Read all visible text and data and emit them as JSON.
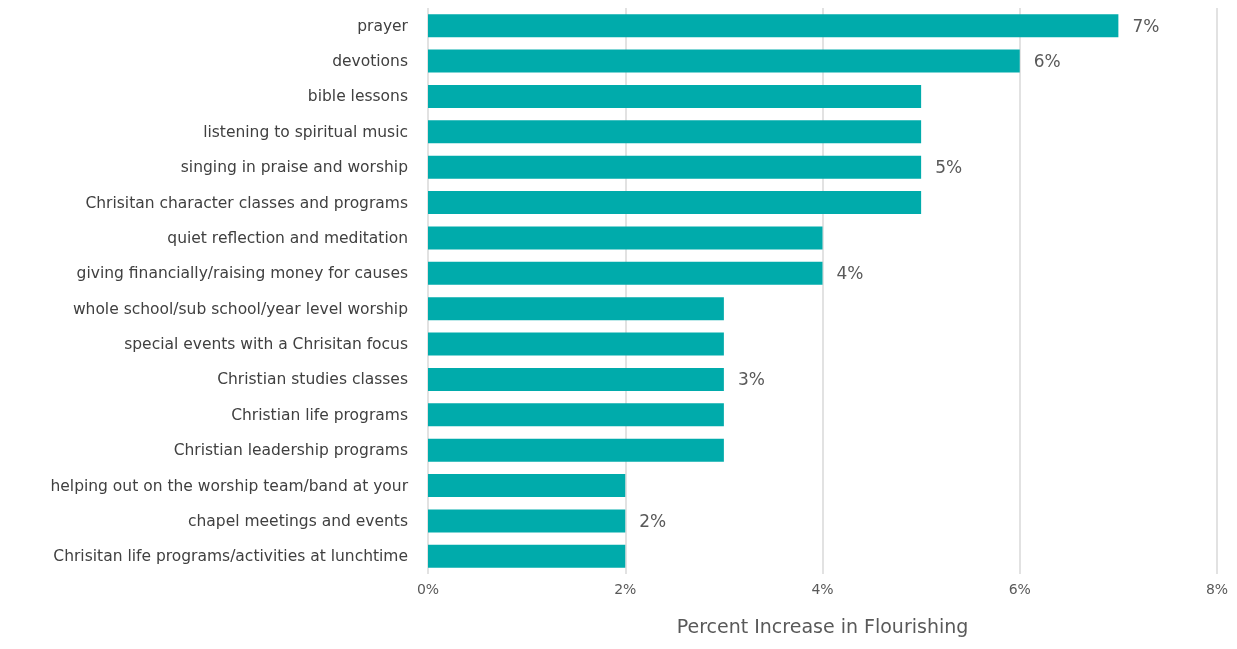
{
  "chart_data": {
    "type": "bar",
    "orientation": "horizontal",
    "xlabel": "Percent Increase in Flourishing",
    "categories": [
      "prayer",
      "devotions",
      "bible lessons",
      "listening to spiritual music",
      "singing in praise and worship",
      "Chrisitan character classes and programs",
      "quiet reflection and meditation",
      "giving financially/raising money for causes",
      "whole school/sub school/year level worship",
      "special events with a Chrisitan focus",
      "Christian studies classes",
      "Christian life programs",
      "Christian leadership programs",
      "helping out on the worship team/band at your",
      "chapel meetings and events",
      "Chrisitan life programs/activities at lunchtime"
    ],
    "values": [
      7,
      6,
      5,
      5,
      5,
      5,
      4,
      4,
      3,
      3,
      3,
      3,
      3,
      2,
      2,
      2
    ],
    "value_labels": [
      "7%",
      "6%",
      null,
      null,
      "5%",
      null,
      null,
      "4%",
      null,
      null,
      "3%",
      null,
      null,
      null,
      "2%",
      null
    ],
    "color": "#00abab",
    "xlim": [
      0,
      8
    ],
    "xticks": [
      {
        "value": 0,
        "label": "0%"
      },
      {
        "value": 2,
        "label": "2%"
      },
      {
        "value": 4,
        "label": "4%"
      },
      {
        "value": 6,
        "label": "6%"
      },
      {
        "value": 8,
        "label": "8%"
      }
    ],
    "grid": "x"
  }
}
